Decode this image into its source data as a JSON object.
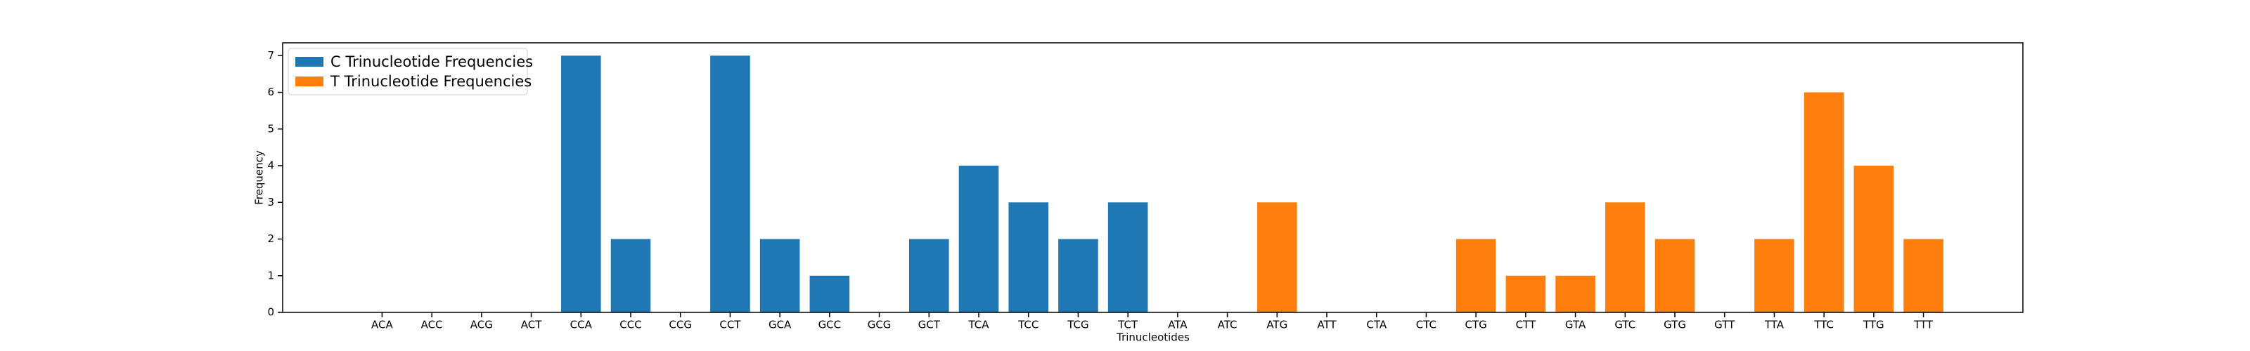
{
  "chart_data": {
    "type": "bar",
    "xlabel": "Trinucleotides",
    "ylabel": "Frequency",
    "categories": [
      "ACA",
      "ACC",
      "ACG",
      "ACT",
      "CCA",
      "CCC",
      "CCG",
      "CCT",
      "GCA",
      "GCC",
      "GCG",
      "GCT",
      "TCA",
      "TCC",
      "TCG",
      "TCT",
      "ATA",
      "ATC",
      "ATG",
      "ATT",
      "CTA",
      "CTC",
      "CTG",
      "CTT",
      "GTA",
      "GTC",
      "GTG",
      "GTT",
      "TTA",
      "TTC",
      "TTG",
      "TTT"
    ],
    "series": [
      {
        "name": "C Trinucleotide Frequencies",
        "color": "#1f77b4",
        "values": [
          0,
          0,
          0,
          0,
          7,
          2,
          0,
          7,
          2,
          1,
          0,
          2,
          4,
          3,
          2,
          3,
          null,
          null,
          null,
          null,
          null,
          null,
          null,
          null,
          null,
          null,
          null,
          null,
          null,
          null,
          null,
          null
        ]
      },
      {
        "name": "T Trinucleotide Frequencies",
        "color": "#ff7f0e",
        "values": [
          null,
          null,
          null,
          null,
          null,
          null,
          null,
          null,
          null,
          null,
          null,
          null,
          null,
          null,
          null,
          null,
          0,
          0,
          3,
          0,
          0,
          0,
          2,
          1,
          1,
          3,
          2,
          0,
          2,
          6,
          4,
          2
        ]
      }
    ],
    "ylim": [
      0,
      7.35
    ],
    "yticks": [
      0,
      1,
      2,
      3,
      4,
      5,
      6,
      7
    ],
    "legend": "upper left"
  }
}
